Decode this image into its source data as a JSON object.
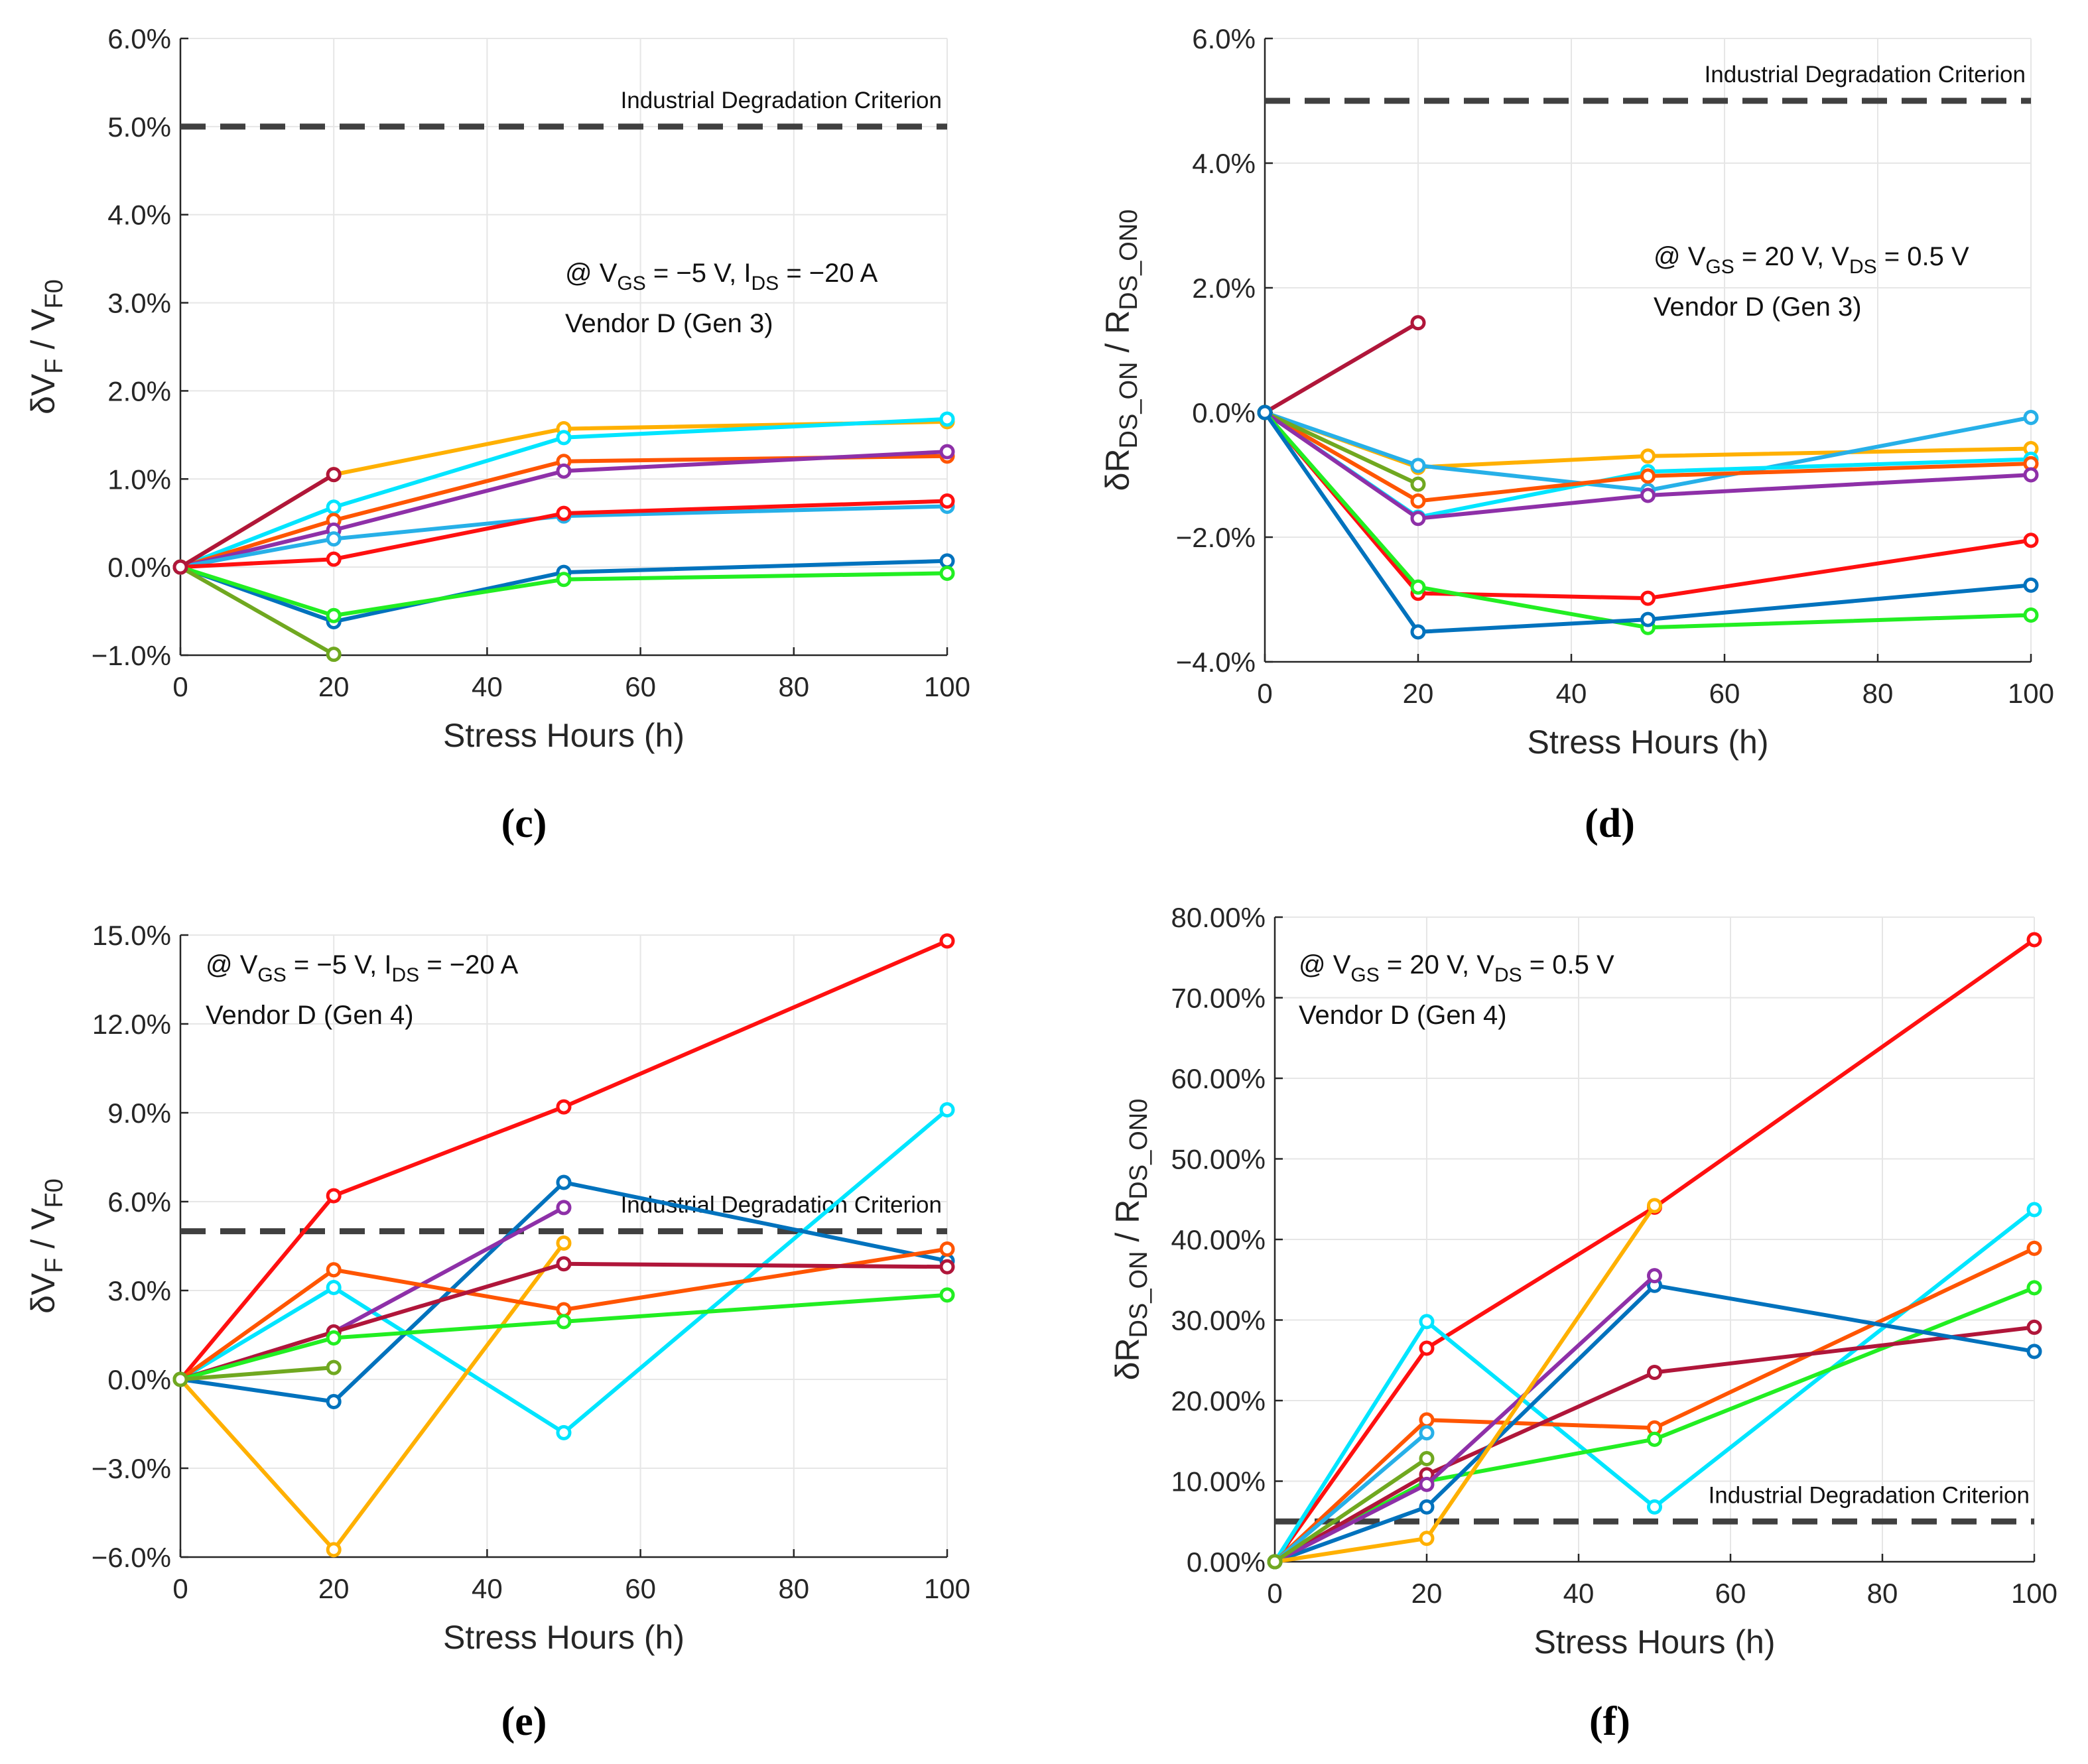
{
  "chart_data": [
    {
      "type": "line",
      "caption": "(c)",
      "xlabel": "Stress Hours (h)",
      "ylabel": "δV_F / V_F0",
      "xlim": [
        0,
        100
      ],
      "ylim": [
        -1.0,
        6.0
      ],
      "xticks": [
        "0",
        "20",
        "40",
        "60",
        "80",
        "100"
      ],
      "yticks": [
        "−1.0%",
        "0.0%",
        "1.0%",
        "2.0%",
        "3.0%",
        "4.0%",
        "5.0%",
        "6.0%"
      ],
      "grid": true,
      "criterion": {
        "label": "Industrial Degradation Criterion",
        "value": 5.0
      },
      "annotation": [
        "@ V_GS = −5 V, I_DS = −20 A",
        "Vendor D (Gen 3)"
      ],
      "series": [
        {
          "color": "#ffb000",
          "x": [
            0,
            20,
            50,
            100
          ],
          "y": [
            0,
            1.05,
            1.57,
            1.65
          ]
        },
        {
          "color": "#00e5ff",
          "x": [
            0,
            20,
            50,
            100
          ],
          "y": [
            0,
            0.68,
            1.47,
            1.68
          ]
        },
        {
          "color": "#ff5500",
          "x": [
            0,
            20,
            50,
            100
          ],
          "y": [
            0,
            0.53,
            1.2,
            1.26
          ]
        },
        {
          "color": "#8e30a8",
          "x": [
            0,
            20,
            50,
            100
          ],
          "y": [
            0,
            0.42,
            1.09,
            1.31
          ]
        },
        {
          "color": "#27b0e8",
          "x": [
            0,
            20,
            50,
            100
          ],
          "y": [
            0,
            0.32,
            0.58,
            0.69
          ]
        },
        {
          "color": "#ff1010",
          "x": [
            0,
            20,
            50,
            100
          ],
          "y": [
            0,
            0.09,
            0.61,
            0.75
          ]
        },
        {
          "color": "#0072bd",
          "x": [
            0,
            20,
            50,
            100
          ],
          "y": [
            0,
            -0.62,
            -0.06,
            0.07
          ]
        },
        {
          "color": "#22ee22",
          "x": [
            0,
            20,
            50,
            100
          ],
          "y": [
            0,
            -0.55,
            -0.14,
            -0.07
          ]
        },
        {
          "color": "#70a820",
          "x": [
            0,
            20
          ],
          "y": [
            0,
            -0.99
          ]
        },
        {
          "color": "#b0163a",
          "x": [
            0,
            20
          ],
          "y": [
            0,
            1.05
          ]
        }
      ]
    },
    {
      "type": "line",
      "caption": "(d)",
      "xlabel": "Stress Hours (h)",
      "ylabel": "δR_DS_ON / R_DS_ON0",
      "xlim": [
        0,
        100
      ],
      "ylim": [
        -4.0,
        6.0
      ],
      "xticks": [
        "0",
        "20",
        "40",
        "60",
        "80",
        "100"
      ],
      "yticks": [
        "−4.0%",
        "−2.0%",
        "0.0%",
        "2.0%",
        "4.0%",
        "6.0%"
      ],
      "grid": true,
      "criterion": {
        "label": "Industrial Degradation Criterion",
        "value": 5.0
      },
      "annotation": [
        "@ V_GS = 20 V, V_DS = 0.5 V",
        "Vendor D (Gen 3)"
      ],
      "series": [
        {
          "color": "#b0163a",
          "x": [
            0,
            20
          ],
          "y": [
            0,
            1.44
          ]
        },
        {
          "color": "#ffb000",
          "x": [
            0,
            20,
            50,
            100
          ],
          "y": [
            0,
            -0.88,
            -0.7,
            -0.58
          ]
        },
        {
          "color": "#27b0e8",
          "x": [
            0,
            20,
            50,
            100
          ],
          "y": [
            0,
            -0.85,
            -1.25,
            -0.08
          ]
        },
        {
          "color": "#00e5ff",
          "x": [
            0,
            20,
            50,
            100
          ],
          "y": [
            0,
            -1.68,
            -0.95,
            -0.75
          ]
        },
        {
          "color": "#ff5500",
          "x": [
            0,
            20,
            50,
            100
          ],
          "y": [
            0,
            -1.42,
            -1.02,
            -0.82
          ]
        },
        {
          "color": "#70a820",
          "x": [
            0,
            20
          ],
          "y": [
            0,
            -1.15
          ]
        },
        {
          "color": "#8e30a8",
          "x": [
            0,
            20,
            50,
            100
          ],
          "y": [
            0,
            -1.7,
            -1.33,
            -1.0
          ]
        },
        {
          "color": "#ff1010",
          "x": [
            0,
            20,
            50,
            100
          ],
          "y": [
            0,
            -2.9,
            -2.98,
            -2.05
          ]
        },
        {
          "color": "#22ee22",
          "x": [
            0,
            20,
            50,
            100
          ],
          "y": [
            0,
            -2.8,
            -3.45,
            -3.25
          ]
        },
        {
          "color": "#0072bd",
          "x": [
            0,
            20,
            50,
            100
          ],
          "y": [
            0,
            -3.52,
            -3.32,
            -2.77
          ]
        }
      ]
    },
    {
      "type": "line",
      "caption": "(e)",
      "xlabel": "Stress Hours (h)",
      "ylabel": "δV_F / V_F0",
      "xlim": [
        0,
        100
      ],
      "ylim": [
        -6.0,
        15.0
      ],
      "xticks": [
        "0",
        "20",
        "40",
        "60",
        "80",
        "100"
      ],
      "yticks": [
        "−6.0%",
        "−3.0%",
        "0.0%",
        "3.0%",
        "6.0%",
        "9.0%",
        "12.0%",
        "15.0%"
      ],
      "grid": true,
      "criterion": {
        "label": "Industrial Degradation Criterion",
        "value": 5.0
      },
      "annotation": [
        "@ V_GS = −5 V, I_DS = −20 A",
        "Vendor D (Gen 4)"
      ],
      "series": [
        {
          "color": "#ff1010",
          "x": [
            0,
            20,
            50,
            100
          ],
          "y": [
            0,
            6.2,
            9.2,
            14.8
          ]
        },
        {
          "color": "#00e5ff",
          "x": [
            0,
            20,
            50,
            100
          ],
          "y": [
            0,
            3.1,
            -1.8,
            9.1
          ]
        },
        {
          "color": "#0072bd",
          "x": [
            0,
            20,
            50,
            100
          ],
          "y": [
            0,
            -0.75,
            6.65,
            4.0
          ]
        },
        {
          "color": "#8e30a8",
          "x": [
            0,
            20,
            50
          ],
          "y": [
            0,
            1.6,
            5.8
          ]
        },
        {
          "color": "#ffb000",
          "x": [
            0,
            20,
            50
          ],
          "y": [
            0,
            -5.75,
            4.6
          ]
        },
        {
          "color": "#ff5500",
          "x": [
            0,
            20,
            50,
            100
          ],
          "y": [
            0,
            3.7,
            2.35,
            4.4
          ]
        },
        {
          "color": "#b0163a",
          "x": [
            0,
            20,
            50,
            100
          ],
          "y": [
            0,
            1.6,
            3.9,
            3.8
          ]
        },
        {
          "color": "#22ee22",
          "x": [
            0,
            20,
            50,
            100
          ],
          "y": [
            0,
            1.4,
            1.95,
            2.85
          ]
        },
        {
          "color": "#70a820",
          "x": [
            0,
            20
          ],
          "y": [
            0,
            0.4
          ]
        }
      ]
    },
    {
      "type": "line",
      "caption": "(f)",
      "xlabel": "Stress Hours (h)",
      "ylabel": "δR_DS_ON / R_DS_ON0",
      "xlim": [
        0,
        100
      ],
      "ylim": [
        0,
        80.0
      ],
      "xticks": [
        "0",
        "20",
        "40",
        "60",
        "80",
        "100"
      ],
      "yticks": [
        "0.00%",
        "10.00%",
        "20.00%",
        "30.00%",
        "40.00%",
        "50.00%",
        "60.00%",
        "70.00%",
        "80.00%"
      ],
      "grid": true,
      "criterion": {
        "label": "Industrial Degradation Criterion",
        "value": 5.0
      },
      "annotation": [
        "@ V_GS = 20 V, V_DS = 0.5 V",
        "Vendor D (Gen 4)"
      ],
      "series": [
        {
          "color": "#ff1010",
          "x": [
            0,
            20,
            50,
            100
          ],
          "y": [
            0,
            26.5,
            44.0,
            77.2
          ]
        },
        {
          "color": "#00e5ff",
          "x": [
            0,
            20,
            50,
            100
          ],
          "y": [
            0,
            29.8,
            6.8,
            43.7
          ]
        },
        {
          "color": "#ff5500",
          "x": [
            0,
            20,
            50,
            100
          ],
          "y": [
            0,
            17.6,
            16.6,
            38.9
          ]
        },
        {
          "color": "#22ee22",
          "x": [
            0,
            20,
            50,
            100
          ],
          "y": [
            0,
            10.0,
            15.2,
            34.0
          ]
        },
        {
          "color": "#b0163a",
          "x": [
            0,
            20,
            50,
            100
          ],
          "y": [
            0,
            10.8,
            23.5,
            29.1
          ]
        },
        {
          "color": "#0072bd",
          "x": [
            0,
            20,
            50,
            100
          ],
          "y": [
            0,
            6.8,
            34.3,
            26.1
          ]
        },
        {
          "color": "#8e30a8",
          "x": [
            0,
            20,
            50
          ],
          "y": [
            0,
            9.6,
            35.5
          ]
        },
        {
          "color": "#ffb000",
          "x": [
            0,
            20,
            50
          ],
          "y": [
            0,
            2.9,
            44.2
          ]
        },
        {
          "color": "#27b0e8",
          "x": [
            0,
            20
          ],
          "y": [
            0,
            16.0
          ]
        },
        {
          "color": "#70a820",
          "x": [
            0,
            20
          ],
          "y": [
            0,
            12.8
          ]
        }
      ]
    }
  ]
}
